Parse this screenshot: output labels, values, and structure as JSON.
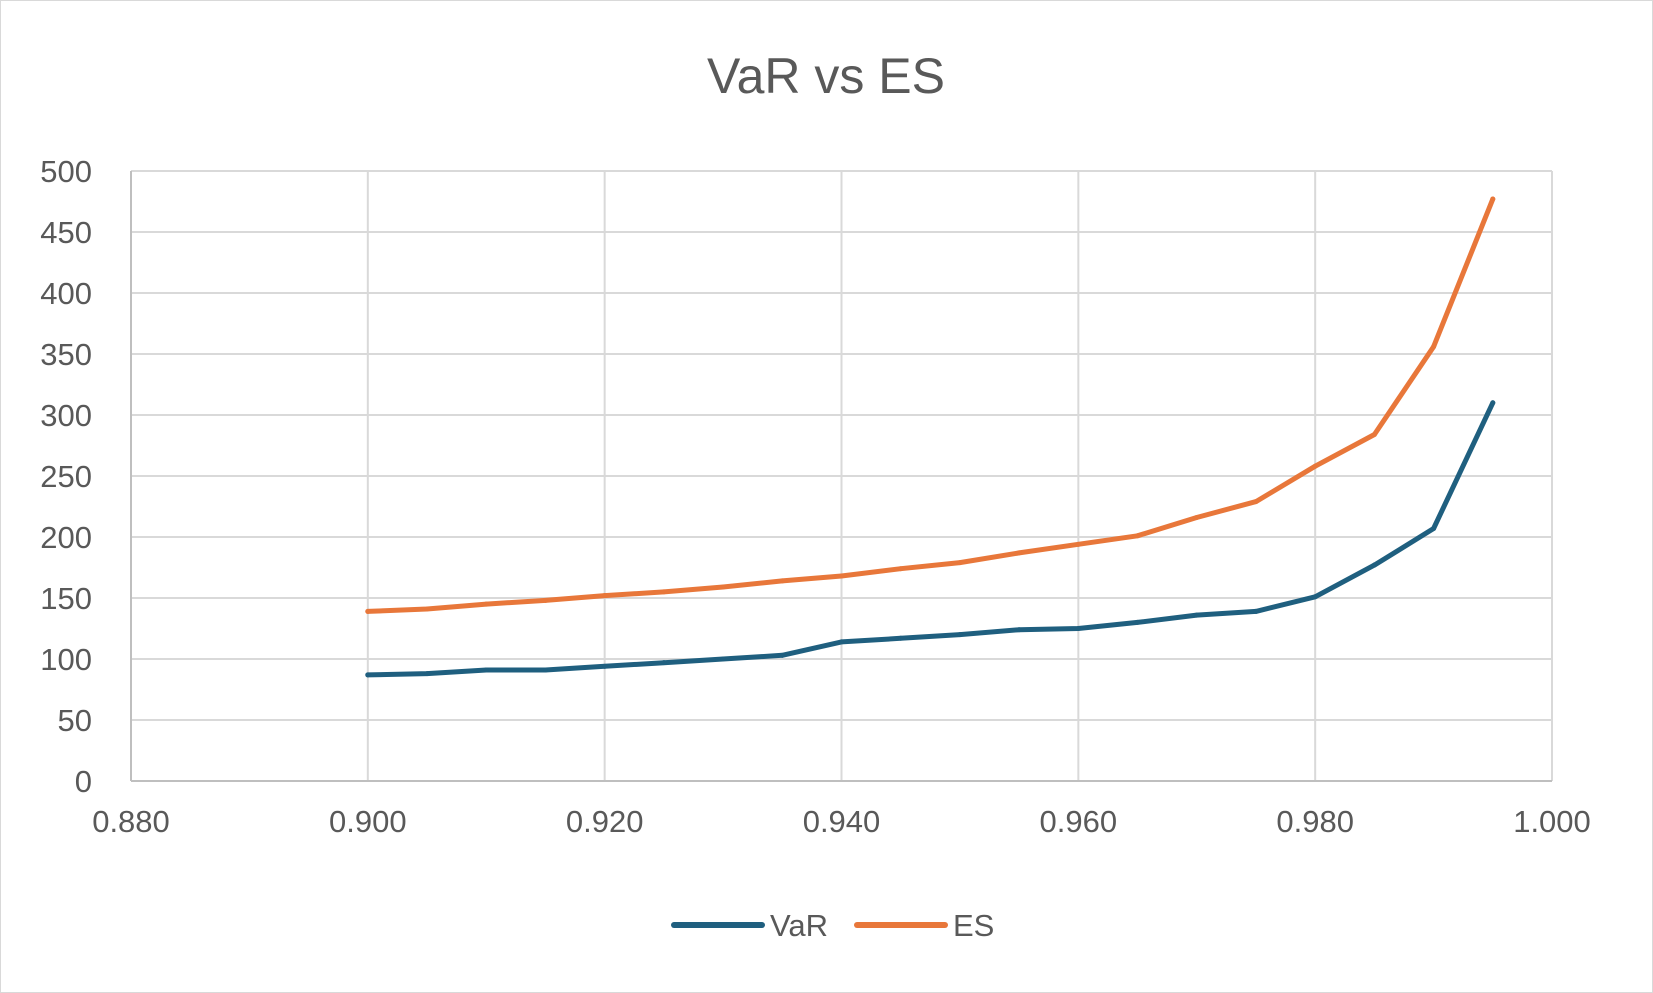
{
  "chart_data": {
    "type": "line",
    "title": "VaR vs ES",
    "xlabel": "",
    "ylabel": "",
    "xlim": [
      0.88,
      1.0
    ],
    "ylim": [
      0,
      500
    ],
    "x_ticks": [
      "0.880",
      "0.900",
      "0.920",
      "0.940",
      "0.960",
      "0.980",
      "1.000"
    ],
    "y_ticks": [
      "0",
      "50",
      "100",
      "150",
      "200",
      "250",
      "300",
      "350",
      "400",
      "450",
      "500"
    ],
    "grid": true,
    "legend_position": "bottom",
    "x": [
      0.9,
      0.905,
      0.91,
      0.915,
      0.92,
      0.925,
      0.93,
      0.935,
      0.94,
      0.945,
      0.95,
      0.955,
      0.96,
      0.965,
      0.97,
      0.975,
      0.98,
      0.985,
      0.99,
      0.995
    ],
    "series": [
      {
        "name": "VaR",
        "color": "#1f5f7f",
        "values": [
          87,
          88,
          91,
          91,
          94,
          97,
          100,
          103,
          114,
          117,
          120,
          124,
          125,
          130,
          136,
          139,
          151,
          177,
          207,
          310
        ]
      },
      {
        "name": "ES",
        "color": "#e8773a",
        "values": [
          139,
          141,
          145,
          148,
          152,
          155,
          159,
          164,
          168,
          174,
          179,
          187,
          194,
          201,
          216,
          229,
          258,
          284,
          356,
          477
        ]
      }
    ]
  }
}
